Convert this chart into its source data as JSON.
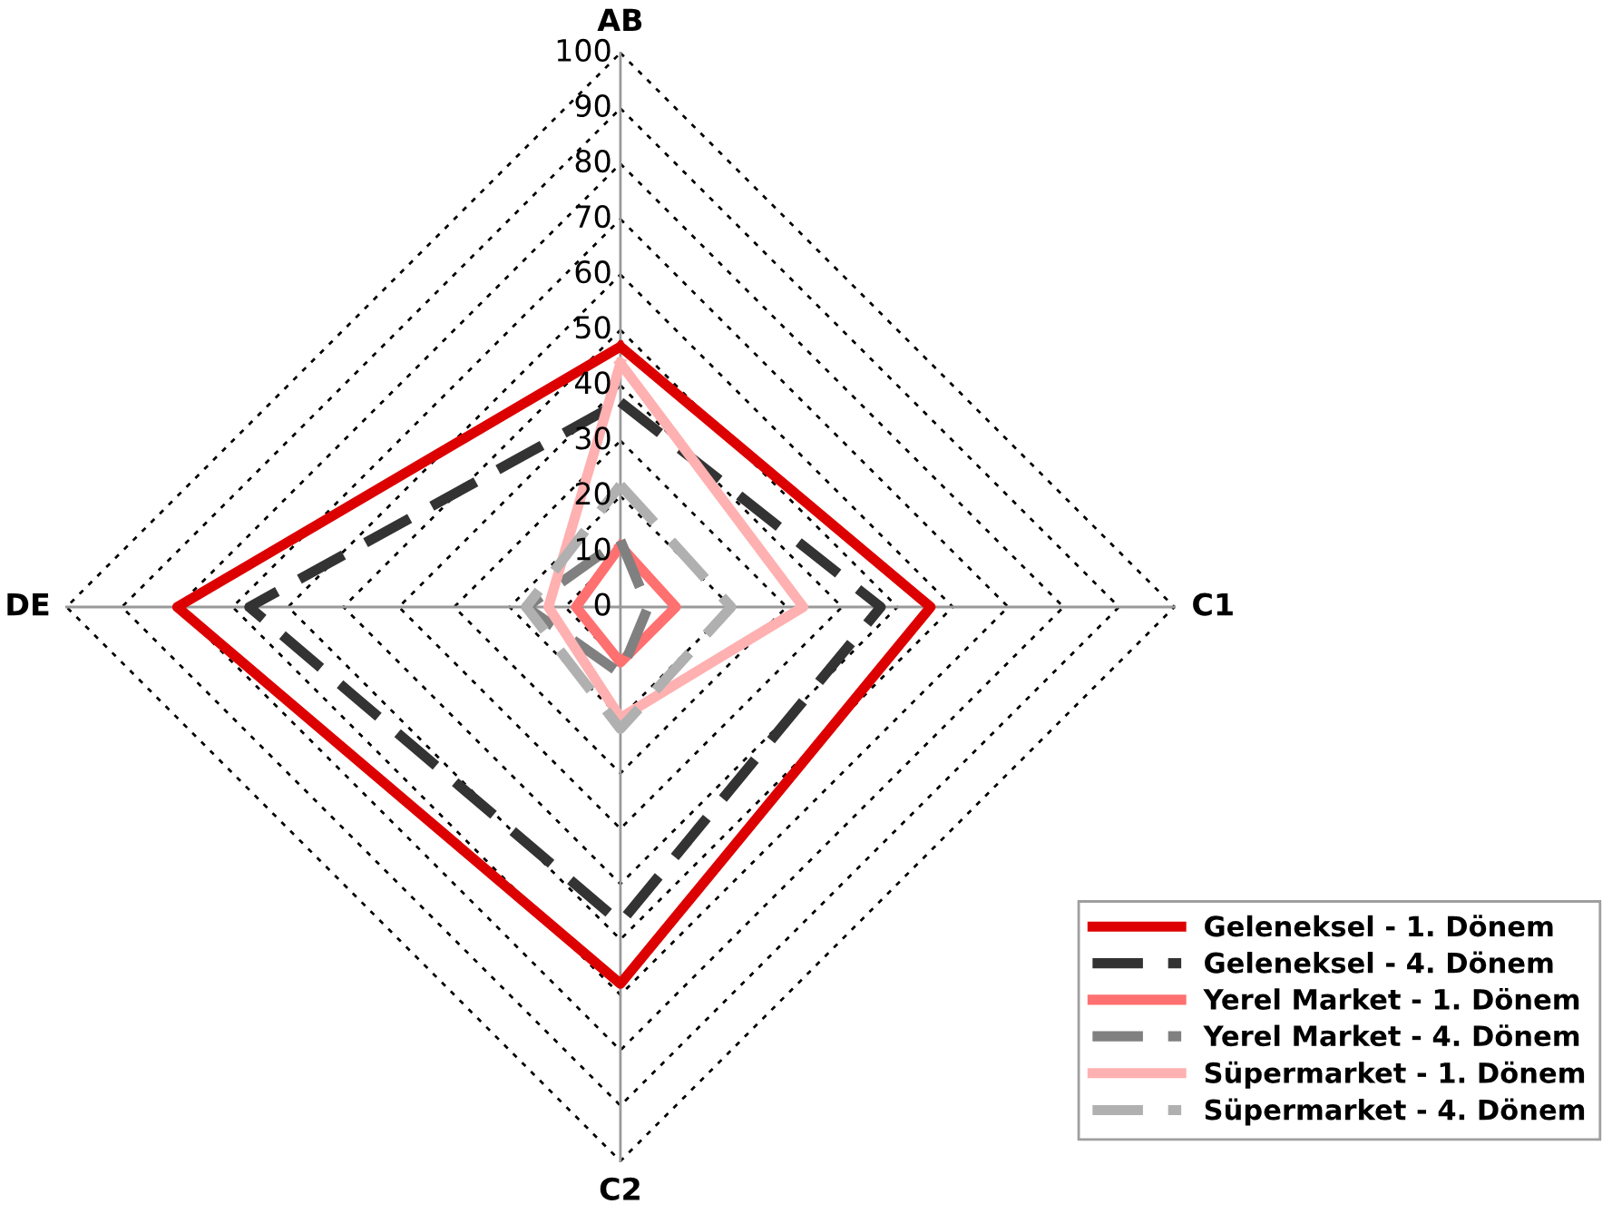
{
  "chart_data": {
    "type": "radar",
    "categories": [
      "AB",
      "C1",
      "C2",
      "DE"
    ],
    "ylim": [
      0,
      100
    ],
    "yticks": [
      0,
      10,
      20,
      30,
      40,
      50,
      60,
      70,
      80,
      90,
      100
    ],
    "grid": true,
    "legend": "bottom right",
    "marker": "none",
    "series": [
      {
        "name": "Geleneksel - 1. Dönem",
        "color": "#dd0000",
        "line_style": "solid",
        "values": [
          47,
          56,
          68,
          80
        ]
      },
      {
        "name": "Geleneksel - 4. Dönem",
        "color": "#333333",
        "line_style": "dashed",
        "values": [
          37,
          47,
          57,
          67
        ]
      },
      {
        "name": "Yerel Market - 1. Dönem",
        "color": "#ff7070",
        "line_style": "solid",
        "values": [
          11,
          10,
          10,
          8
        ]
      },
      {
        "name": "Yerel Market - 4. Dönem",
        "color": "#808080",
        "line_style": "dashed",
        "values": [
          12,
          5,
          12,
          17
        ]
      },
      {
        "name": "Süpermarket - 1. Dönem",
        "color": "#ffb0b0",
        "line_style": "solid",
        "values": [
          44,
          33,
          20,
          13
        ]
      },
      {
        "name": "Süpermarket - 4. Dönem",
        "color": "#b0b0b0",
        "line_style": "dashed",
        "values": [
          22,
          20,
          22,
          17
        ]
      }
    ]
  }
}
